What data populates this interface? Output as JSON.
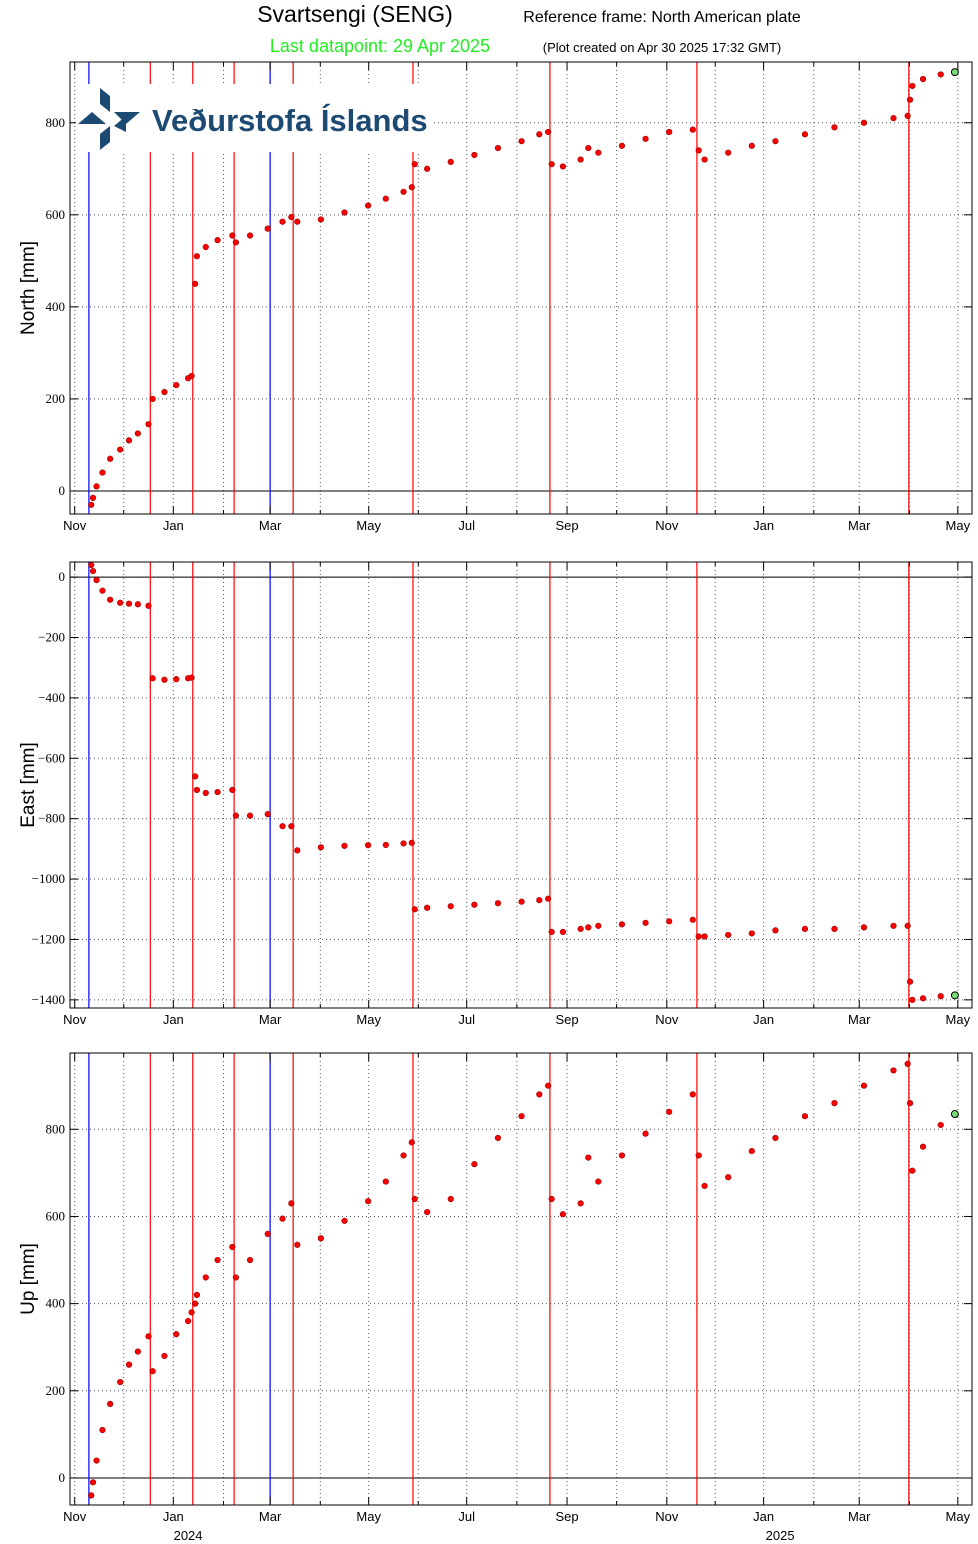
{
  "header": {
    "title": "Svartsengi (SENG)",
    "reference": "Reference frame: North American plate",
    "last_datapoint": "Last datapoint: 29 Apr 2025",
    "created": "(Plot created on Apr 30 2025 17:32 GMT)",
    "logo_text": "Veðurstofa Íslands"
  },
  "chart_data": [
    {
      "type": "scatter",
      "ylabel": "North [mm]",
      "marker_color": "#ff0000",
      "last_marker_color": "#77dd77",
      "zero_line": true,
      "grid": true,
      "xlim": [
        2023.825,
        2025.353
      ],
      "ylim": [
        -50,
        932
      ],
      "xticks": [
        {
          "value": 2023.833,
          "label": "Nov"
        },
        {
          "value": 2024.0,
          "label": "Jan"
        },
        {
          "value": 2024.164,
          "label": "Mar"
        },
        {
          "value": 2024.331,
          "label": "May"
        },
        {
          "value": 2024.497,
          "label": "Jul"
        },
        {
          "value": 2024.667,
          "label": "Sep"
        },
        {
          "value": 2024.836,
          "label": "Nov"
        },
        {
          "value": 2025.0,
          "label": "Jan"
        },
        {
          "value": 2025.162,
          "label": "Mar"
        },
        {
          "value": 2025.329,
          "label": "May"
        }
      ],
      "xminorticks": [
        2023.916,
        2024.085,
        2024.249,
        2024.415,
        2024.582,
        2024.751,
        2024.918,
        2025.085,
        2025.247
      ],
      "yticks": [
        0,
        200,
        400,
        600,
        800
      ],
      "events": [
        {
          "x": 2023.857,
          "color": "#0000ff"
        },
        {
          "x": 2023.961,
          "color": "#ff0000"
        },
        {
          "x": 2024.033,
          "color": "#ff0000"
        },
        {
          "x": 2024.103,
          "color": "#ff0000"
        },
        {
          "x": 2024.164,
          "color": "#0000ff"
        },
        {
          "x": 2024.203,
          "color": "#ff0000"
        },
        {
          "x": 2024.406,
          "color": "#ff0000"
        },
        {
          "x": 2024.638,
          "color": "#ff0000"
        },
        {
          "x": 2024.887,
          "color": "#ff0000"
        },
        {
          "x": 2025.246,
          "color": "#ff0000"
        }
      ],
      "x": [
        2023.861,
        2023.864,
        2023.87,
        2023.88,
        2023.893,
        2023.91,
        2023.925,
        2023.94,
        2023.958,
        2023.965,
        2023.985,
        2024.005,
        2024.025,
        2024.031,
        2024.037,
        2024.04,
        2024.055,
        2024.075,
        2024.1,
        2024.106,
        2024.13,
        2024.16,
        2024.185,
        2024.2,
        2024.21,
        2024.25,
        2024.29,
        2024.33,
        2024.36,
        2024.39,
        2024.404,
        2024.409,
        2024.43,
        2024.47,
        2024.51,
        2024.55,
        2024.59,
        2024.62,
        2024.635,
        2024.641,
        2024.66,
        2024.69,
        2024.703,
        2024.72,
        2024.76,
        2024.8,
        2024.84,
        2024.88,
        2024.89,
        2024.9,
        2024.94,
        2024.98,
        2025.02,
        2025.07,
        2025.12,
        2025.17,
        2025.22,
        2025.244,
        2025.248,
        2025.252,
        2025.27,
        2025.3,
        2025.324
      ],
      "values": [
        -30,
        -15,
        10,
        40,
        70,
        90,
        110,
        125,
        145,
        200,
        215,
        230,
        245,
        250,
        450,
        510,
        530,
        545,
        555,
        540,
        555,
        570,
        585,
        595,
        585,
        590,
        605,
        620,
        635,
        650,
        660,
        710,
        700,
        715,
        730,
        745,
        760,
        775,
        780,
        710,
        705,
        720,
        745,
        735,
        750,
        765,
        780,
        785,
        740,
        720,
        735,
        750,
        760,
        775,
        790,
        800,
        810,
        815,
        850,
        880,
        895,
        905,
        910
      ]
    },
    {
      "type": "scatter",
      "ylabel": "East [mm]",
      "marker_color": "#ff0000",
      "last_marker_color": "#77dd77",
      "zero_line": true,
      "grid": true,
      "xlim": [
        2023.825,
        2025.353
      ],
      "ylim": [
        -1427,
        50
      ],
      "xticks": [
        {
          "value": 2023.833,
          "label": "Nov"
        },
        {
          "value": 2024.0,
          "label": "Jan"
        },
        {
          "value": 2024.164,
          "label": "Mar"
        },
        {
          "value": 2024.331,
          "label": "May"
        },
        {
          "value": 2024.497,
          "label": "Jul"
        },
        {
          "value": 2024.667,
          "label": "Sep"
        },
        {
          "value": 2024.836,
          "label": "Nov"
        },
        {
          "value": 2025.0,
          "label": "Jan"
        },
        {
          "value": 2025.162,
          "label": "Mar"
        },
        {
          "value": 2025.329,
          "label": "May"
        }
      ],
      "xminorticks": [
        2023.916,
        2024.085,
        2024.249,
        2024.415,
        2024.582,
        2024.751,
        2024.918,
        2025.085,
        2025.247
      ],
      "yticks": [
        0,
        {
          "value": -200,
          "label": "−200"
        },
        {
          "value": -400,
          "label": "−400"
        },
        {
          "value": -600,
          "label": "−600"
        },
        {
          "value": -800,
          "label": "−800"
        },
        {
          "value": -1000,
          "label": "−1000"
        },
        {
          "value": -1200,
          "label": "−1200"
        },
        {
          "value": -1400,
          "label": "−1400"
        }
      ],
      "events": [
        {
          "x": 2023.857,
          "color": "#0000ff"
        },
        {
          "x": 2023.961,
          "color": "#ff0000"
        },
        {
          "x": 2024.033,
          "color": "#ff0000"
        },
        {
          "x": 2024.103,
          "color": "#ff0000"
        },
        {
          "x": 2024.164,
          "color": "#0000ff"
        },
        {
          "x": 2024.203,
          "color": "#ff0000"
        },
        {
          "x": 2024.406,
          "color": "#ff0000"
        },
        {
          "x": 2024.638,
          "color": "#ff0000"
        },
        {
          "x": 2024.887,
          "color": "#ff0000"
        },
        {
          "x": 2025.246,
          "color": "#ff0000"
        }
      ],
      "x": [
        2023.861,
        2023.864,
        2023.87,
        2023.88,
        2023.893,
        2023.91,
        2023.925,
        2023.94,
        2023.958,
        2023.965,
        2023.985,
        2024.005,
        2024.025,
        2024.031,
        2024.037,
        2024.04,
        2024.055,
        2024.075,
        2024.1,
        2024.106,
        2024.13,
        2024.16,
        2024.185,
        2024.2,
        2024.21,
        2024.25,
        2024.29,
        2024.33,
        2024.36,
        2024.39,
        2024.404,
        2024.409,
        2024.43,
        2024.47,
        2024.51,
        2024.55,
        2024.59,
        2024.62,
        2024.635,
        2024.641,
        2024.66,
        2024.69,
        2024.703,
        2024.72,
        2024.76,
        2024.8,
        2024.84,
        2024.88,
        2024.89,
        2024.9,
        2024.94,
        2024.98,
        2025.02,
        2025.07,
        2025.12,
        2025.17,
        2025.22,
        2025.244,
        2025.248,
        2025.252,
        2025.27,
        2025.3,
        2025.324
      ],
      "values": [
        40,
        20,
        -10,
        -45,
        -75,
        -85,
        -88,
        -90,
        -95,
        -335,
        -340,
        -338,
        -335,
        -333,
        -660,
        -705,
        -715,
        -712,
        -705,
        -790,
        -790,
        -785,
        -825,
        -825,
        -905,
        -895,
        -890,
        -888,
        -887,
        -882,
        -880,
        -1100,
        -1095,
        -1090,
        -1085,
        -1080,
        -1075,
        -1070,
        -1065,
        -1175,
        -1175,
        -1165,
        -1160,
        -1155,
        -1150,
        -1145,
        -1140,
        -1135,
        -1190,
        -1190,
        -1185,
        -1180,
        -1170,
        -1165,
        -1165,
        -1160,
        -1155,
        -1155,
        -1340,
        -1400,
        -1395,
        -1388,
        -1385
      ]
    },
    {
      "type": "scatter",
      "ylabel": "Up [mm]",
      "marker_color": "#ff0000",
      "last_marker_color": "#77dd77",
      "zero_line": true,
      "grid": true,
      "xlim": [
        2023.825,
        2025.353
      ],
      "ylim": [
        -62,
        975
      ],
      "xticks": [
        {
          "value": 2023.833,
          "label": "Nov"
        },
        {
          "value": 2024.0,
          "label": "Jan"
        },
        {
          "value": 2024.164,
          "label": "Mar"
        },
        {
          "value": 2024.331,
          "label": "May"
        },
        {
          "value": 2024.497,
          "label": "Jul"
        },
        {
          "value": 2024.667,
          "label": "Sep"
        },
        {
          "value": 2024.836,
          "label": "Nov"
        },
        {
          "value": 2025.0,
          "label": "Jan"
        },
        {
          "value": 2025.162,
          "label": "Mar"
        },
        {
          "value": 2025.329,
          "label": "May"
        }
      ],
      "xminorticks": [
        2023.916,
        2024.085,
        2024.249,
        2024.415,
        2024.582,
        2024.751,
        2024.918,
        2025.085,
        2025.247
      ],
      "year_labels": [
        {
          "value": 2024.025,
          "label": "2024"
        },
        {
          "value": 2025.028,
          "label": "2025"
        }
      ],
      "yticks": [
        0,
        200,
        400,
        600,
        800
      ],
      "events": [
        {
          "x": 2023.857,
          "color": "#0000ff"
        },
        {
          "x": 2023.961,
          "color": "#ff0000"
        },
        {
          "x": 2024.033,
          "color": "#ff0000"
        },
        {
          "x": 2024.103,
          "color": "#ff0000"
        },
        {
          "x": 2024.164,
          "color": "#0000ff"
        },
        {
          "x": 2024.203,
          "color": "#ff0000"
        },
        {
          "x": 2024.406,
          "color": "#ff0000"
        },
        {
          "x": 2024.638,
          "color": "#ff0000"
        },
        {
          "x": 2024.887,
          "color": "#ff0000"
        },
        {
          "x": 2025.246,
          "color": "#ff0000"
        }
      ],
      "x": [
        2023.861,
        2023.864,
        2023.87,
        2023.88,
        2023.893,
        2023.91,
        2023.925,
        2023.94,
        2023.958,
        2023.965,
        2023.985,
        2024.005,
        2024.025,
        2024.031,
        2024.037,
        2024.04,
        2024.055,
        2024.075,
        2024.1,
        2024.106,
        2024.13,
        2024.16,
        2024.185,
        2024.2,
        2024.21,
        2024.25,
        2024.29,
        2024.33,
        2024.36,
        2024.39,
        2024.404,
        2024.409,
        2024.43,
        2024.47,
        2024.51,
        2024.55,
        2024.59,
        2024.62,
        2024.635,
        2024.641,
        2024.66,
        2024.69,
        2024.703,
        2024.72,
        2024.76,
        2024.8,
        2024.84,
        2024.88,
        2024.89,
        2024.9,
        2024.94,
        2024.98,
        2025.02,
        2025.07,
        2025.12,
        2025.17,
        2025.22,
        2025.244,
        2025.248,
        2025.252,
        2025.27,
        2025.3,
        2025.324
      ],
      "values": [
        -40,
        -10,
        40,
        110,
        170,
        220,
        260,
        290,
        325,
        245,
        280,
        330,
        360,
        380,
        400,
        420,
        460,
        500,
        530,
        460,
        500,
        560,
        595,
        630,
        535,
        550,
        590,
        635,
        680,
        740,
        770,
        640,
        610,
        640,
        720,
        780,
        830,
        880,
        900,
        640,
        605,
        630,
        735,
        680,
        740,
        790,
        840,
        880,
        740,
        670,
        690,
        750,
        780,
        830,
        860,
        900,
        935,
        950,
        860,
        705,
        760,
        810,
        835
      ]
    }
  ]
}
